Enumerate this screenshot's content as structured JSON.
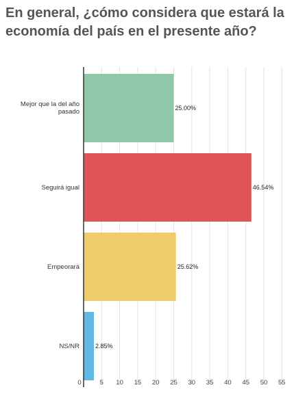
{
  "title": "En general, ¿cómo considera que estará la economía del país en el presente año?",
  "colors": {
    "green": "#8fc8a8",
    "red": "#de5457",
    "yellow": "#eecb6b",
    "blue": "#62b8e2"
  },
  "chart_data": {
    "type": "bar",
    "orientation": "horizontal",
    "categories": [
      "Mejor que la del año pasado",
      "Seguirá igual",
      "Empeorará",
      "NS/NR"
    ],
    "values": [
      25.0,
      46.54,
      25.62,
      2.85
    ],
    "data_labels": [
      "25.00%",
      "46.54%",
      "25.62%",
      "2.85%"
    ],
    "bar_colors": [
      "#8fc8a8",
      "#de5457",
      "#eecb6b",
      "#62b8e2"
    ],
    "xlim": [
      0,
      55
    ],
    "xticks": [
      0,
      5,
      10,
      15,
      20,
      25,
      30,
      35,
      40,
      45,
      50,
      55
    ],
    "grid": true,
    "legend": false
  }
}
